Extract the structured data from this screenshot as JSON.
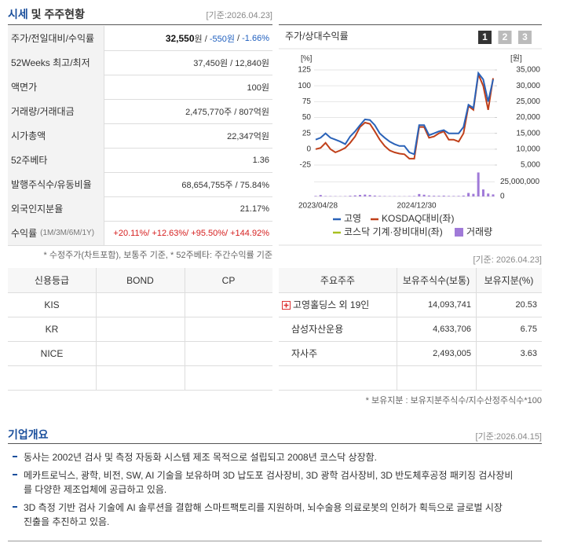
{
  "market": {
    "title": [
      "시세",
      " 및 주주현황"
    ],
    "date": "[기준:2026.04.23]",
    "rows": [
      {
        "label": "주가/전일대비/수익률",
        "value": [
          {
            "text": "32,550",
            "color": "#111",
            "bold": true
          },
          {
            "text": "원 / ",
            "color": "#333"
          },
          {
            "text": "-550원",
            "color": "#1f5fbf"
          },
          {
            "text": " / ",
            "color": "#333"
          },
          {
            "text": "-1.66%",
            "color": "#1f5fbf"
          }
        ]
      },
      {
        "label": "52Weeks 최고/최저",
        "value": [
          {
            "text": "37,450원 / 12,840원",
            "color": "#333"
          }
        ]
      },
      {
        "label": "액면가",
        "value": [
          {
            "text": "100원",
            "color": "#333"
          }
        ]
      },
      {
        "label": "거래량/거래대금",
        "value": [
          {
            "text": "2,475,770주 / 807억원",
            "color": "#333"
          }
        ]
      },
      {
        "label": "시가총액",
        "value": [
          {
            "text": "22,347억원",
            "color": "#333"
          }
        ]
      },
      {
        "label": "52주베타",
        "value": [
          {
            "text": "1.36",
            "color": "#333"
          }
        ]
      },
      {
        "label": "발행주식수/유동비율",
        "value": [
          {
            "text": "68,654,755주 / 75.84%",
            "color": "#333"
          }
        ]
      },
      {
        "label": "외국인지분율",
        "value": [
          {
            "text": "21.17%",
            "color": "#333"
          }
        ]
      },
      {
        "label": "수익률",
        "label_note": "(1M/3M/6M/1Y)",
        "value": [
          {
            "text": "+20.11%/ +12.63%/ +95.50%/ +144.92%",
            "color": "#d62020"
          }
        ]
      }
    ],
    "note": "* 수정주가(차트포함), 보통주 기준, * 52주베타: 주간수익률 기준"
  },
  "chart": {
    "type": "line",
    "title": "주가/상대수익률",
    "buttons": [
      "1",
      "2",
      "3"
    ],
    "y_unit": "[%]",
    "y2_unit": "[원]",
    "categories": [
      "2023/04/28",
      null,
      null,
      null,
      null,
      null,
      null,
      null,
      null,
      null,
      null,
      null,
      null,
      null,
      null,
      null,
      null,
      null,
      null,
      null,
      "2024/12/30",
      null,
      null,
      null,
      null,
      null,
      null,
      null,
      null,
      null,
      null,
      null,
      null,
      null,
      null,
      null,
      null
    ],
    "ylim": [
      -25,
      125
    ],
    "yticks": [
      -25,
      0,
      25,
      50,
      75,
      100,
      125
    ],
    "y2lim": [
      5000,
      35000
    ],
    "y2ticks": [
      {
        "value": 5000,
        "label": "5,000"
      },
      {
        "value": 10000,
        "label": "10,000"
      },
      {
        "value": 15000,
        "label": "15,000"
      },
      {
        "value": 20000,
        "label": "20,000"
      },
      {
        "value": 25000,
        "label": "25,000"
      },
      {
        "value": 30000,
        "label": "30,000"
      },
      {
        "value": 35000,
        "label": "35,000"
      }
    ],
    "vlim": [
      0,
      47000000
    ],
    "vticks": [
      0,
      {
        "value": 25000000,
        "label": "25,000,000"
      }
    ],
    "grid": true,
    "series": [
      {
        "name": "고영",
        "color": "#2a62b8",
        "axis": "y2",
        "values": [
          13000,
          13600,
          15000,
          13600,
          13000,
          12400,
          11600,
          14000,
          15600,
          17600,
          19400,
          19200,
          17600,
          15000,
          13600,
          12400,
          11600,
          11000,
          11000,
          9000,
          8400,
          17600,
          17600,
          14400,
          15000,
          15600,
          16000,
          15000,
          15000,
          15000,
          17000,
          24000,
          23000,
          34000,
          32000,
          25000,
          32000
        ]
      },
      {
        "name": "KOSDAQ대비(좌)",
        "color": "#c0401a",
        "values": [
          0,
          2,
          10,
          0,
          -5,
          -2,
          2,
          10,
          20,
          35,
          42,
          40,
          28,
          15,
          5,
          -2,
          -5,
          -7,
          -8,
          -15,
          -15,
          35,
          35,
          18,
          20,
          25,
          28,
          15,
          15,
          12,
          25,
          68,
          62,
          118,
          100,
          62,
          112
        ]
      },
      {
        "name": "코스닥 기계·장비대비(좌)",
        "color": "#a8c020"
      }
    ],
    "volume": {
      "name": "거래량",
      "color": "#a07ad8",
      "values": [
        900000,
        2500000,
        700000,
        600000,
        500000,
        400000,
        600000,
        1200000,
        1800000,
        2600000,
        3200000,
        2400000,
        1500000,
        900000,
        700000,
        500000,
        500000,
        400000,
        400000,
        600000,
        800000,
        4200000,
        3000000,
        1600000,
        1200000,
        1100000,
        1400000,
        900000,
        800000,
        900000,
        1500000,
        6000000,
        4500000,
        41000000,
        12000000,
        5000000,
        3500000
      ]
    }
  },
  "chart_date": "[기준: 2026.04.23]",
  "credit": {
    "header": [
      "신용등급",
      "BOND",
      "CP"
    ],
    "rows": [
      [
        "KIS"
      ],
      [
        "KR"
      ],
      [
        "NICE"
      ]
    ]
  },
  "holders": {
    "header": [
      "주요주주",
      "보유주식수(보통)",
      "보유지분(%)"
    ],
    "rows": [
      [
        "고영홀딩스 외 19인",
        "14,093,741",
        "20.53"
      ],
      [
        "삼성자산운용",
        "4,633,706",
        "6.75"
      ],
      [
        "자사주",
        "2,493,005",
        "3.63"
      ]
    ],
    "note": "* 보유지분 : 보유지분주식수/지수산정주식수*100"
  },
  "overview": {
    "title": "기업개요",
    "date": "[기준:2026.04.15]",
    "bullets": [
      [
        "동사는 2002년 검사 및 측정 자동화 시스템 제조 목적으로 설립되고 2008년 코스닥 상장함."
      ],
      [
        "메카트로닉스, 광학, 비전, SW, AI 기술을 보유하며 3D 납도포 검사장비, 3D 광학 검사장비, 3D 반도체후공정 패키징 검사장비",
        "를 다양한 제조업체에 공급하고 있음."
      ],
      [
        "3D 측정 기반 검사 기술에 AI 솔루션을 결합해 스마트팩토리를 지원하며, 뇌수술용 의료로봇의 인허가 획득으로 글로벌 시장",
        "진출을 추진하고 있음."
      ]
    ]
  }
}
